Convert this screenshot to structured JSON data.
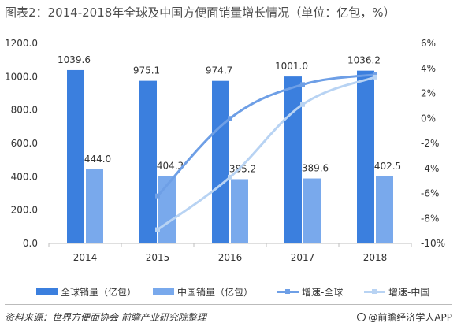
{
  "title": "图表2：2014-2018年全球及中国方便面销量增长情况（单位：亿包，%）",
  "chart_data": {
    "type": "bar",
    "categories": [
      "2014",
      "2015",
      "2016",
      "2017",
      "2018"
    ],
    "series": [
      {
        "name": "全球销量（亿包）",
        "kind": "bar",
        "axis": "left",
        "color": "#3b7fde",
        "values": [
          1039.6,
          975.1,
          974.7,
          1001.0,
          1036.2
        ],
        "labels": [
          "1039.6",
          "975.1",
          "974.7",
          "1001.0",
          "1036.2"
        ]
      },
      {
        "name": "中国销量（亿包）",
        "kind": "bar",
        "axis": "left",
        "color": "#79a9ec",
        "values": [
          444.0,
          404.3,
          385.2,
          389.6,
          402.5
        ],
        "labels": [
          "444.0",
          "404.3",
          "385.2",
          "389.6",
          "402.5"
        ]
      },
      {
        "name": "增速-全球",
        "kind": "line",
        "axis": "right",
        "color": "#6e9fe6",
        "values": [
          null,
          -6.2,
          0.0,
          2.7,
          3.5
        ]
      },
      {
        "name": "增速-中国",
        "kind": "line",
        "axis": "right",
        "color": "#b8d3f3",
        "values": [
          null,
          -8.9,
          -4.7,
          1.1,
          3.3
        ]
      }
    ],
    "yleft": {
      "min": 0,
      "max": 1200,
      "ticks": [
        "0.0",
        "200.0",
        "400.0",
        "600.0",
        "800.0",
        "1000.0",
        "1200.0"
      ]
    },
    "yright": {
      "min": -10,
      "max": 6,
      "ticks": [
        "-10%",
        "-8%",
        "-6%",
        "-4%",
        "-2%",
        "0%",
        "2%",
        "4%",
        "6%"
      ]
    },
    "legend_position": "bottom",
    "grid": false
  },
  "source": "资料来源：世界方便面协会  前瞻产业研究院整理",
  "brand": "@前瞻经济学人APP"
}
